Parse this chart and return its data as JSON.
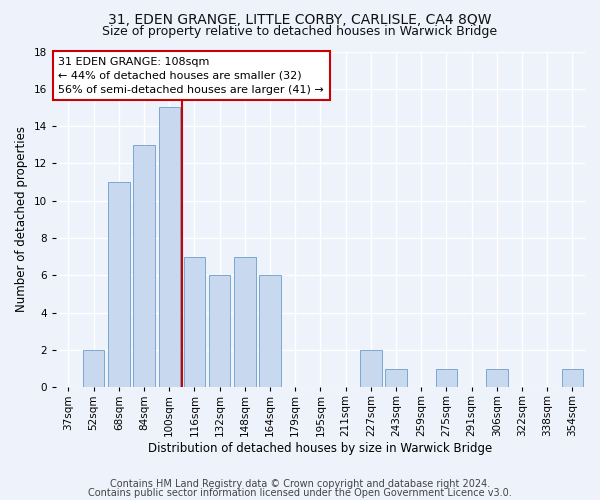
{
  "title1": "31, EDEN GRANGE, LITTLE CORBY, CARLISLE, CA4 8QW",
  "title2": "Size of property relative to detached houses in Warwick Bridge",
  "xlabel": "Distribution of detached houses by size in Warwick Bridge",
  "ylabel": "Number of detached properties",
  "categories": [
    "37sqm",
    "52sqm",
    "68sqm",
    "84sqm",
    "100sqm",
    "116sqm",
    "132sqm",
    "148sqm",
    "164sqm",
    "179sqm",
    "195sqm",
    "211sqm",
    "227sqm",
    "243sqm",
    "259sqm",
    "275sqm",
    "291sqm",
    "306sqm",
    "322sqm",
    "338sqm",
    "354sqm"
  ],
  "values": [
    0,
    2,
    11,
    13,
    15,
    7,
    6,
    7,
    6,
    0,
    0,
    0,
    2,
    1,
    0,
    1,
    0,
    1,
    0,
    0,
    1
  ],
  "bar_color": "#c8d8ee",
  "bar_edgecolor": "#7aa8d0",
  "vline_x_index": 5,
  "vline_color": "#cc0000",
  "ylim": [
    0,
    18
  ],
  "yticks": [
    0,
    2,
    4,
    6,
    8,
    10,
    12,
    14,
    16,
    18
  ],
  "annotation_text": "31 EDEN GRANGE: 108sqm\n← 44% of detached houses are smaller (32)\n56% of semi-detached houses are larger (41) →",
  "annotation_box_facecolor": "#ffffff",
  "annotation_box_edgecolor": "#cc0000",
  "footer1": "Contains HM Land Registry data © Crown copyright and database right 2024.",
  "footer2": "Contains public sector information licensed under the Open Government Licence v3.0.",
  "fig_facecolor": "#eef2fb",
  "ax_facecolor": "#eef2fb",
  "grid_color": "#ffffff",
  "title1_fontsize": 10,
  "title2_fontsize": 9,
  "xlabel_fontsize": 8.5,
  "ylabel_fontsize": 8.5,
  "tick_fontsize": 7.5,
  "annotation_fontsize": 8,
  "footer_fontsize": 7
}
